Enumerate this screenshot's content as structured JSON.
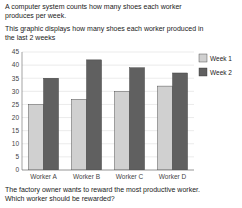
{
  "chart_data": {
    "type": "bar",
    "title": "A computer system counts how many shoes each worker\nproduces per week.",
    "subtitle": "This graphic displays how many shoes each worker produced in\nthe last 2 weeks",
    "annotations": [
      "The factory owner wants to reward the most productive worker.\nWhich worker should be rewarded?"
    ],
    "categories": [
      "Worker A",
      "Worker B",
      "Worker C",
      "Worker D"
    ],
    "series": [
      {
        "name": "Week 1",
        "color": "#d0d0d0",
        "values": [
          25,
          27,
          30,
          32
        ]
      },
      {
        "name": "Week 2",
        "color": "#606060",
        "values": [
          35,
          42,
          39,
          37
        ]
      }
    ],
    "ylim": [
      0,
      45
    ],
    "yticks": [
      0,
      5,
      10,
      15,
      20,
      25,
      30,
      35,
      40,
      45
    ],
    "grid": true,
    "legend": "right"
  }
}
